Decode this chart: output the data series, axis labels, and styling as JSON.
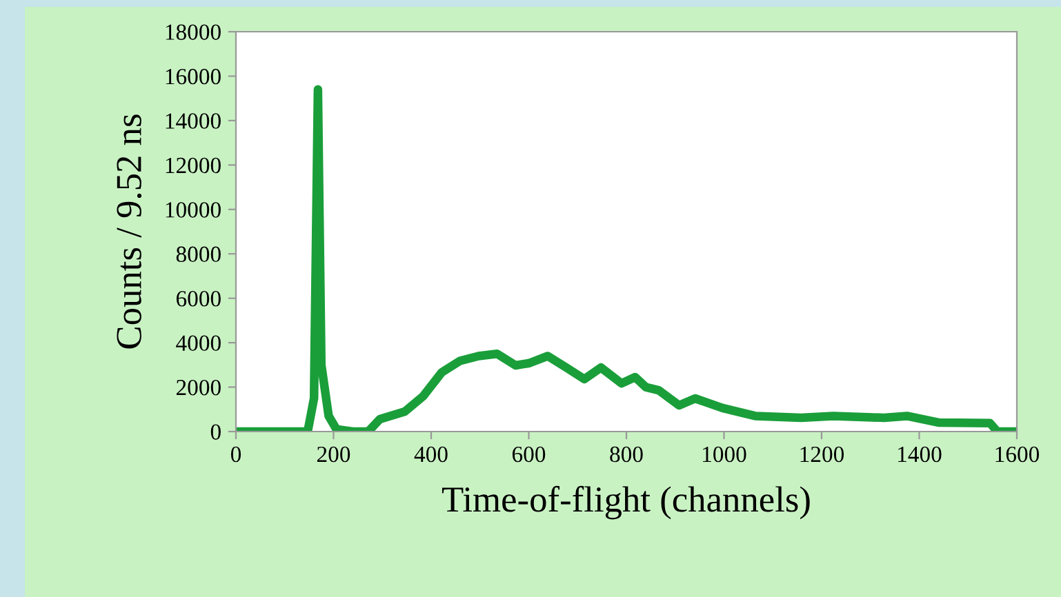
{
  "chart_data": {
    "type": "line",
    "xlabel": "Time-of-flight (channels)",
    "ylabel": "Counts / 9.52 ns",
    "xlim": [
      0,
      1600
    ],
    "xticks": [
      0,
      200,
      400,
      600,
      800,
      1000,
      1200,
      1400,
      1600
    ],
    "ylim": [
      0,
      18000
    ],
    "yticks": [
      0,
      2000,
      4000,
      6000,
      8000,
      10000,
      12000,
      14000,
      16000,
      18000
    ],
    "grid": false,
    "marker": "none",
    "line_style": "solid",
    "series": [
      {
        "color": "#1a9e3a",
        "x": [
          0,
          100,
          147,
          160,
          168,
          175,
          190,
          206,
          240,
          271,
          295,
          346,
          384,
          422,
          459,
          497,
          535,
          573,
          601,
          639,
          677,
          714,
          748,
          790,
          818,
          840,
          866,
          908,
          941,
          997,
          1064,
          1158,
          1224,
          1328,
          1375,
          1441,
          1545,
          1560,
          1600
        ],
        "values": [
          0,
          0,
          0,
          1500,
          15400,
          3000,
          700,
          100,
          0,
          0,
          560,
          900,
          1600,
          2670,
          3180,
          3400,
          3500,
          2980,
          3080,
          3400,
          2880,
          2360,
          2880,
          2170,
          2450,
          2000,
          1860,
          1180,
          1490,
          1060,
          700,
          620,
          700,
          620,
          700,
          400,
          380,
          0,
          0
        ]
      }
    ]
  }
}
